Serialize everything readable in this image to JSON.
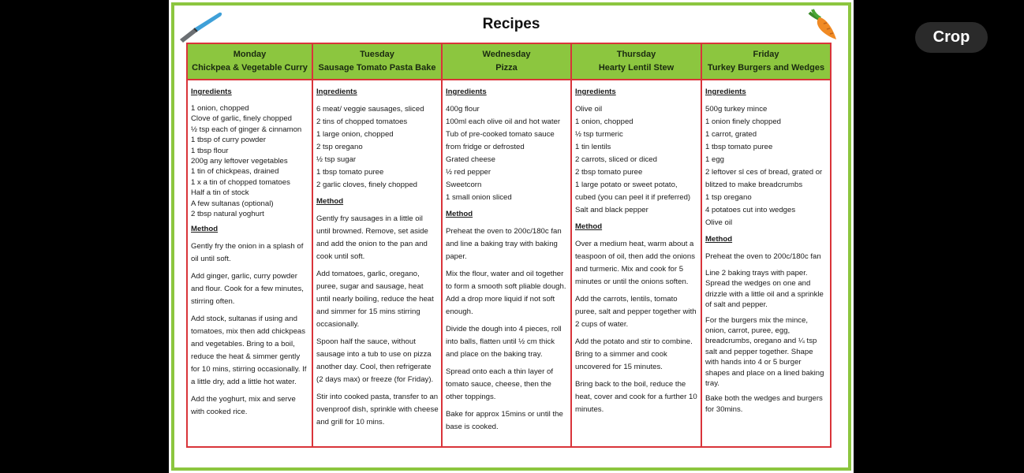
{
  "crop_button": {
    "label": "Crop"
  },
  "sheet": {
    "title": "Recipes"
  },
  "labels": {
    "ingredients": "Ingredients",
    "method": "Method"
  },
  "icons": {
    "left": "knife-icon",
    "right": "carrot-icon"
  },
  "colors": {
    "header_green": "#8cc63f",
    "border_red": "#d9343a"
  },
  "days": [
    {
      "day": "Monday",
      "recipe": "Chickpea & Vegetable Curry",
      "ingredients": [
        "1 onion, chopped",
        "Clove of garlic, finely chopped",
        "½ tsp each of ginger & cinnamon",
        "1 tbsp of curry powder",
        "1 tbsp flour",
        "200g any leftover vegetables",
        "1 tin of chickpeas, drained",
        "1 x a tin of chopped tomatoes",
        "Half a tin of stock",
        "A few sultanas (optional)",
        "2 tbsp natural yoghurt"
      ],
      "method": [
        "Gently fry the onion in a splash of oil until soft.",
        "Add ginger, garlic, curry powder and flour. Cook for a few minutes, stirring often.",
        "Add stock, sultanas if using and tomatoes, mix then add chickpeas and vegetables. Bring to a boil, reduce the heat & simmer gently for 10 mins, stirring occasionally. If a little dry, add a little hot water.",
        "Add the yoghurt, mix and serve with cooked rice."
      ]
    },
    {
      "day": "Tuesday",
      "recipe": "Sausage Tomato Pasta Bake",
      "ingredients": [
        "6 meat/ veggie sausages, sliced",
        "2 tins of chopped tomatoes",
        "1 large onion, chopped",
        "2 tsp oregano",
        "½ tsp sugar",
        "1 tbsp tomato puree",
        "2 garlic cloves, finely chopped"
      ],
      "method": [
        "Gently fry sausages in a little oil until browned. Remove, set aside and add the onion to the pan and cook until soft.",
        "Add tomatoes, garlic, oregano, puree, sugar and sausage, heat until nearly boiling, reduce the heat and simmer for 15 mins stirring occasionally.",
        "Spoon half the sauce, without sausage into a tub to use on pizza another day. Cool, then refrigerate (2 days max) or freeze (for Friday).",
        "Stir into cooked pasta, transfer to an ovenproof dish, sprinkle with cheese and grill for 10 mins."
      ]
    },
    {
      "day": "Wednesday",
      "recipe": "Pizza",
      "ingredients": [
        "400g flour",
        "100ml each olive oil and hot water",
        "Tub of pre-cooked tomato sauce from fridge or defrosted",
        "Grated cheese",
        "½ red pepper",
        "Sweetcorn",
        "1 small onion sliced"
      ],
      "method": [
        "Preheat the oven to 200c/180c fan and line a baking tray with baking paper.",
        "Mix the flour, water and oil together to form a smooth soft pliable dough. Add a drop more liquid if not soft enough.",
        "Divide the dough into 4 pieces, roll into balls, flatten until ½ cm thick and place on the baking tray.",
        "Spread onto each a thin layer of tomato sauce, cheese, then the other toppings.",
        "Bake for approx 15mins or until the base is cooked."
      ]
    },
    {
      "day": "Thursday",
      "recipe": "Hearty Lentil Stew",
      "ingredients": [
        "Olive oil",
        "1 onion, chopped",
        "½ tsp turmeric",
        "1 tin lentils",
        "2 carrots, sliced or diced",
        "2 tbsp tomato puree",
        "1 large potato or sweet potato, cubed (you can peel it if preferred)",
        "Salt and black pepper"
      ],
      "method": [
        "Over a medium heat, warm about a teaspoon of oil, then add the onions and turmeric. Mix and cook for 5 minutes or until the onions soften.",
        "Add the carrots, lentils, tomato puree, salt and pepper together with 2 cups of water.",
        "Add the potato and stir to combine. Bring to a simmer and cook uncovered for 15 minutes.",
        "Bring back to the boil, reduce the heat, cover and cook for a further 10 minutes."
      ]
    },
    {
      "day": "Friday",
      "recipe": "Turkey Burgers and Wedges",
      "ingredients": [
        "500g turkey mince",
        "1 onion finely chopped",
        "1 carrot, grated",
        "1 tbsp tomato puree",
        "1 egg",
        "2 leftover sl ces of bread, grated or blitzed to make breadcrumbs",
        "1 tsp oregano",
        "4 potatoes cut into wedges",
        "Olive oil"
      ],
      "method": [
        "Preheat the oven to 200c/180c fan",
        "Line 2 baking trays with paper. Spread the wedges on one and drizzle with a little oil and a sprinkle of salt and pepper.",
        "For the burgers mix the mince, onion, carrot, puree, egg, breadcrumbs, oregano and ¼ tsp salt and pepper together. Shape with hands into 4 or 5 burger shapes and place on a lined baking tray.",
        "Bake both the wedges and burgers for 30mins."
      ]
    }
  ]
}
